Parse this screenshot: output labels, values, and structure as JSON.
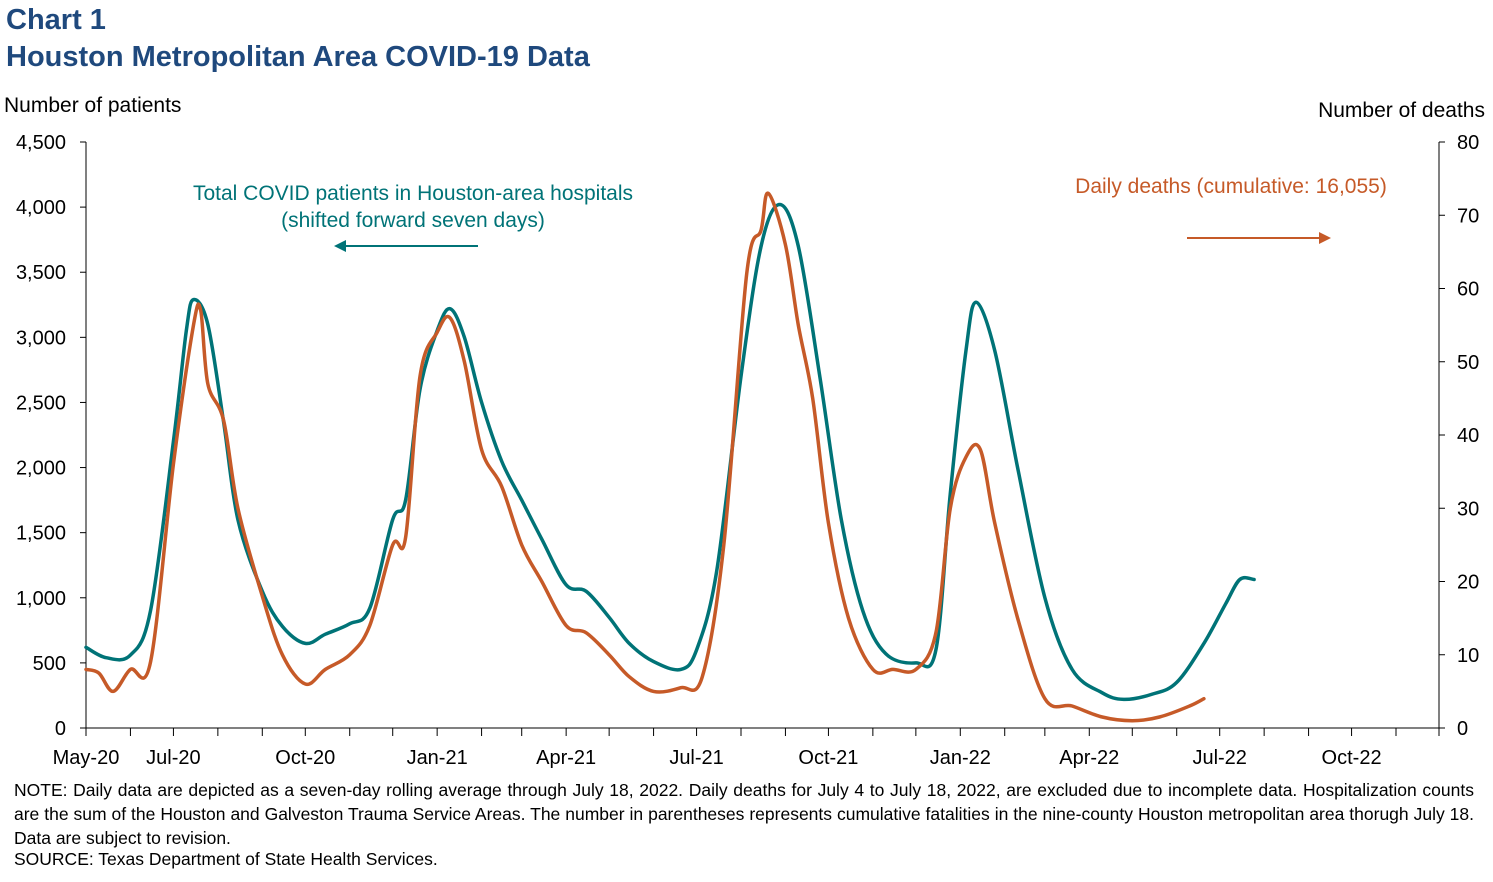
{
  "header": {
    "title_line1": "Chart 1",
    "title_line2": "Houston Metropolitan Area COVID-19 Data"
  },
  "footer": {
    "note": "NOTE: Daily data are depicted as a seven-day rolling average through July 18, 2022. Daily deaths for July 4 to July 18, 2022, are excluded due to incomplete data. Hospitalization counts are the sum of the Houston and Galveston Trauma Service Areas. The number in parentheses represents cumulative fatalities in the nine-county Houston metropolitan area thorugh July 18. Data are subject to revision.",
    "source": "SOURCE: Texas Department of State Health Services."
  },
  "chart_data": {
    "type": "line",
    "ylabel_left": "Number of patients",
    "ylabel_right": "Number of deaths",
    "ylim_left": [
      0,
      4500
    ],
    "ylim_right": [
      0,
      80
    ],
    "yticks_left": [
      "0",
      "500",
      "1,000",
      "1,500",
      "2,000",
      "2,500",
      "3,000",
      "3,500",
      "4,000",
      "4,500"
    ],
    "yticks_right": [
      "0",
      "10",
      "20",
      "30",
      "40",
      "50",
      "60",
      "70",
      "80"
    ],
    "xticks": [
      "May-20",
      "Jul-20",
      "Oct-20",
      "Jan-21",
      "Apr-21",
      "Jul-21",
      "Oct-21",
      "Jan-22",
      "Apr-22",
      "Jul-22",
      "Oct-22"
    ],
    "xlim": [
      "2020-05-01",
      "2022-12-01"
    ],
    "grid": false,
    "colors": {
      "hospital": "#007377",
      "deaths": "#c65a28",
      "title": "#1f497d"
    },
    "series": [
      {
        "name": "Total COVID patients in Houston-area hospitals (shifted forward seven days)",
        "axis": "left",
        "points": [
          [
            "2020-05-01",
            620
          ],
          [
            "2020-05-15",
            540
          ],
          [
            "2020-06-01",
            560
          ],
          [
            "2020-06-15",
            900
          ],
          [
            "2020-07-01",
            2200
          ],
          [
            "2020-07-10",
            3050
          ],
          [
            "2020-07-15",
            3290
          ],
          [
            "2020-07-25",
            3100
          ],
          [
            "2020-08-05",
            2350
          ],
          [
            "2020-08-15",
            1600
          ],
          [
            "2020-09-01",
            1050
          ],
          [
            "2020-09-15",
            780
          ],
          [
            "2020-10-01",
            650
          ],
          [
            "2020-10-15",
            720
          ],
          [
            "2020-11-01",
            800
          ],
          [
            "2020-11-15",
            920
          ],
          [
            "2020-12-01",
            1600
          ],
          [
            "2020-12-10",
            1750
          ],
          [
            "2020-12-20",
            2600
          ],
          [
            "2021-01-01",
            3050
          ],
          [
            "2021-01-10",
            3220
          ],
          [
            "2021-01-20",
            3000
          ],
          [
            "2021-02-01",
            2500
          ],
          [
            "2021-02-15",
            2050
          ],
          [
            "2021-03-01",
            1750
          ],
          [
            "2021-03-15",
            1450
          ],
          [
            "2021-04-01",
            1100
          ],
          [
            "2021-04-15",
            1050
          ],
          [
            "2021-05-01",
            850
          ],
          [
            "2021-05-15",
            650
          ],
          [
            "2021-06-01",
            510
          ],
          [
            "2021-06-20",
            450
          ],
          [
            "2021-07-01",
            600
          ],
          [
            "2021-07-15",
            1200
          ],
          [
            "2021-08-01",
            2700
          ],
          [
            "2021-08-15",
            3700
          ],
          [
            "2021-08-28",
            4020
          ],
          [
            "2021-09-10",
            3700
          ],
          [
            "2021-09-25",
            2700
          ],
          [
            "2021-10-10",
            1600
          ],
          [
            "2021-10-25",
            900
          ],
          [
            "2021-11-10",
            570
          ],
          [
            "2021-12-01",
            500
          ],
          [
            "2021-12-15",
            600
          ],
          [
            "2021-12-25",
            1800
          ],
          [
            "2022-01-05",
            2900
          ],
          [
            "2022-01-12",
            3270
          ],
          [
            "2022-01-25",
            2900
          ],
          [
            "2022-02-10",
            2000
          ],
          [
            "2022-03-01",
            1000
          ],
          [
            "2022-03-20",
            450
          ],
          [
            "2022-04-10",
            270
          ],
          [
            "2022-04-25",
            220
          ],
          [
            "2022-05-15",
            260
          ],
          [
            "2022-06-01",
            350
          ],
          [
            "2022-06-20",
            650
          ],
          [
            "2022-07-05",
            950
          ],
          [
            "2022-07-15",
            1140
          ],
          [
            "2022-07-25",
            1140
          ]
        ]
      },
      {
        "name": "Daily deaths (cumulative: 16,055)",
        "axis": "right",
        "points": [
          [
            "2020-05-01",
            8
          ],
          [
            "2020-05-10",
            7.5
          ],
          [
            "2020-05-20",
            5
          ],
          [
            "2020-06-01",
            8
          ],
          [
            "2020-06-15",
            9
          ],
          [
            "2020-07-01",
            36
          ],
          [
            "2020-07-15",
            55
          ],
          [
            "2020-07-20",
            57
          ],
          [
            "2020-07-25",
            47
          ],
          [
            "2020-08-05",
            42
          ],
          [
            "2020-08-15",
            30
          ],
          [
            "2020-09-01",
            18
          ],
          [
            "2020-09-15",
            10
          ],
          [
            "2020-10-01",
            6
          ],
          [
            "2020-10-15",
            8
          ],
          [
            "2020-11-01",
            10
          ],
          [
            "2020-11-15",
            14
          ],
          [
            "2020-12-01",
            25
          ],
          [
            "2020-12-10",
            26
          ],
          [
            "2020-12-20",
            48
          ],
          [
            "2021-01-01",
            54
          ],
          [
            "2021-01-10",
            56
          ],
          [
            "2021-01-20",
            50
          ],
          [
            "2021-02-01",
            38
          ],
          [
            "2021-02-15",
            33
          ],
          [
            "2021-03-01",
            25
          ],
          [
            "2021-03-15",
            20
          ],
          [
            "2021-04-01",
            14
          ],
          [
            "2021-04-15",
            13
          ],
          [
            "2021-05-01",
            10
          ],
          [
            "2021-05-15",
            7
          ],
          [
            "2021-06-01",
            5
          ],
          [
            "2021-06-20",
            5.5
          ],
          [
            "2021-07-05",
            7
          ],
          [
            "2021-07-20",
            25
          ],
          [
            "2021-08-05",
            62
          ],
          [
            "2021-08-15",
            68
          ],
          [
            "2021-08-20",
            73
          ],
          [
            "2021-09-01",
            66
          ],
          [
            "2021-09-10",
            55
          ],
          [
            "2021-09-20",
            45
          ],
          [
            "2021-10-01",
            28
          ],
          [
            "2021-10-15",
            15
          ],
          [
            "2021-11-01",
            8
          ],
          [
            "2021-11-15",
            8
          ],
          [
            "2021-12-01",
            8
          ],
          [
            "2021-12-15",
            13
          ],
          [
            "2021-12-25",
            30
          ],
          [
            "2022-01-05",
            37
          ],
          [
            "2022-01-15",
            38
          ],
          [
            "2022-01-25",
            28
          ],
          [
            "2022-02-10",
            15
          ],
          [
            "2022-03-01",
            4
          ],
          [
            "2022-03-20",
            3
          ],
          [
            "2022-04-10",
            1.5
          ],
          [
            "2022-05-01",
            1
          ],
          [
            "2022-05-20",
            1.5
          ],
          [
            "2022-06-10",
            3
          ],
          [
            "2022-06-20",
            4
          ]
        ]
      }
    ],
    "annotations": [
      {
        "text_line1": "Total COVID patients in Houston-area hospitals",
        "text_line2": "(shifted forward seven days)",
        "arrow": "left",
        "color": "#007377"
      },
      {
        "text_line1": "Daily deaths (cumulative: 16,055)",
        "arrow": "right",
        "color": "#c65a28"
      }
    ]
  }
}
